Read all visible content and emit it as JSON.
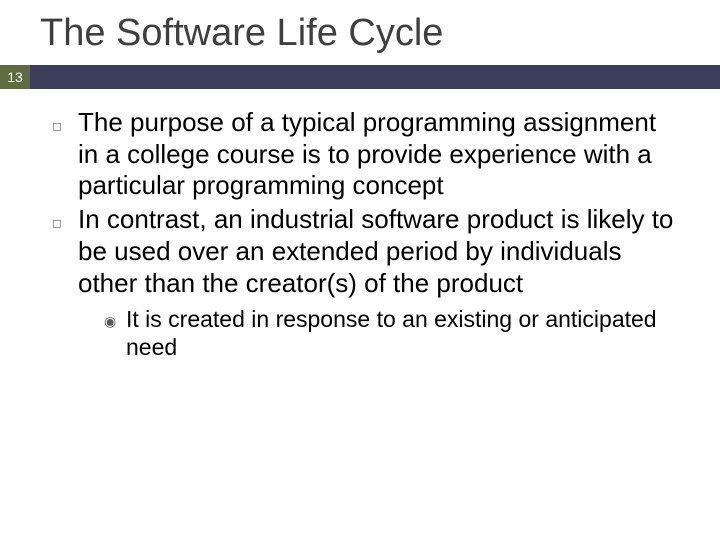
{
  "slide": {
    "title": "The Software Life Cycle",
    "page_number": "13",
    "colors": {
      "title_text": "#3f3f3f",
      "page_box_bg": "#5e6c3f",
      "page_box_text": "#ffffff",
      "band_bg": "#3b3f5c",
      "body_text": "#000000",
      "bullet_marker": "#6a6a6a",
      "background": "#ffffff"
    },
    "typography": {
      "title_fontsize": 38,
      "body_fontsize": 26,
      "sub_fontsize": 23,
      "page_fontsize": 14,
      "font_family": "Arial"
    },
    "bullets": [
      {
        "text": "The purpose of a typical programming assignment in a college course is to provide experience with a particular programming concept"
      },
      {
        "text": "In contrast, an industrial software product is likely to be used over an extended period by individuals other than the creator(s) of the product",
        "sub": [
          {
            "text": "It is created in response to an existing or anticipated need"
          }
        ]
      }
    ],
    "bullet_glyph": "◻",
    "sub_glyph": "◉"
  }
}
